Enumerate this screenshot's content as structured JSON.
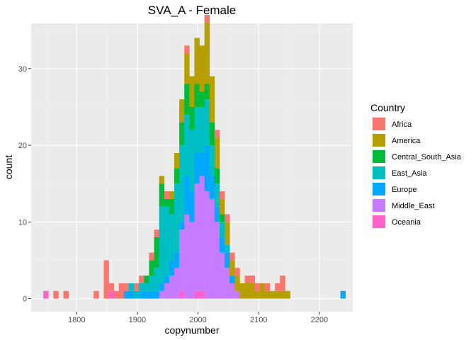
{
  "chart_data": {
    "type": "histogram",
    "title": "SVA_A - Female",
    "xlabel": "copynumber",
    "ylabel": "count",
    "xlim": [
      1725,
      2255
    ],
    "ylim": [
      -1.7,
      35.9
    ],
    "x_ticks": [
      1800,
      1900,
      2000,
      2100,
      2200
    ],
    "y_ticks": [
      0,
      10,
      20,
      30
    ],
    "x_tick_labels": [
      "1800",
      "1900",
      "2000",
      "2100",
      "2200"
    ],
    "y_tick_labels": [
      "0",
      "10",
      "20",
      "30"
    ],
    "stacked": true,
    "bin_width": 8.3,
    "bin_start": 1745,
    "bin_count": 60,
    "legend": {
      "title": "Country",
      "position": "right"
    },
    "grid": true,
    "series": [
      {
        "name": "Africa",
        "color": "#F8766D",
        "bins": {
          "2": 1,
          "4": 1,
          "10": 1,
          "12": 5,
          "13": 1,
          "14": 1,
          "15": 2,
          "16": 1,
          "18": 1,
          "19": 1,
          "21": 1,
          "22": 1,
          "24": 1,
          "28": 1,
          "32": 1,
          "34": 1,
          "35": 1,
          "36": 1,
          "37": 1,
          "38": 1,
          "40": 1,
          "41": 1,
          "42": 1,
          "44": 1,
          "46": 1,
          "47": 2
        }
      },
      {
        "name": "America",
        "color": "#B79F00",
        "bins": {
          "21": 0,
          "23": 1,
          "25": 1,
          "26": 2,
          "27": 3,
          "28": 4,
          "29": 4,
          "30": 6,
          "31": 6,
          "32": 8,
          "33": 6,
          "34": 4,
          "35": 2,
          "36": 3,
          "37": 2,
          "38": 2,
          "39": 2,
          "40": 2,
          "41": 2,
          "42": 1,
          "43": 2,
          "44": 1,
          "45": 1,
          "46": 1,
          "47": 1,
          "48": 1
        }
      },
      {
        "name": "Central_South_Asia",
        "color": "#00BA38",
        "bins": {
          "20": 1,
          "21": 2,
          "22": 4,
          "23": 3,
          "24": 1,
          "25": 2,
          "26": 2,
          "27": 3,
          "28": 4,
          "29": 3,
          "30": 3,
          "31": 2,
          "32": 2,
          "33": 3,
          "34": 2,
          "35": 1
        }
      },
      {
        "name": "East_Asia",
        "color": "#00BFC4",
        "bins": {
          "17": 1,
          "18": 1,
          "19": 1,
          "20": 1,
          "21": 2,
          "22": 3,
          "23": 10,
          "24": 9,
          "25": 6,
          "26": 9,
          "27": 10,
          "28": 8,
          "29": 8,
          "30": 6,
          "31": 6,
          "32": 6,
          "33": 4,
          "34": 3,
          "35": 2,
          "36": 1
        }
      },
      {
        "name": "Europe",
        "color": "#00A9FF",
        "bins": {
          "16": 1,
          "17": 1,
          "19": 1,
          "20": 1,
          "21": 1,
          "22": 1,
          "23": 1,
          "24": 1,
          "25": 2,
          "26": 2,
          "27": 1,
          "28": 5,
          "29": 4,
          "30": 4,
          "31": 3,
          "32": 6,
          "33": 3,
          "34": 2,
          "35": 2,
          "36": 2,
          "37": 1,
          "59": 1
        }
      },
      {
        "name": "Middle_East",
        "color": "#C77CFF",
        "bins": {
          "23": 1,
          "24": 2,
          "25": 3,
          "26": 4,
          "27": 8,
          "28": 11,
          "29": 10,
          "30": 14,
          "31": 15,
          "32": 14,
          "33": 13,
          "34": 10,
          "35": 6,
          "36": 4,
          "37": 2,
          "38": 1
        }
      },
      {
        "name": "Oceania",
        "color": "#FF61CC",
        "bins": {
          "0": 1,
          "13": 1,
          "27": 1,
          "30": 1,
          "31": 1
        }
      }
    ]
  }
}
